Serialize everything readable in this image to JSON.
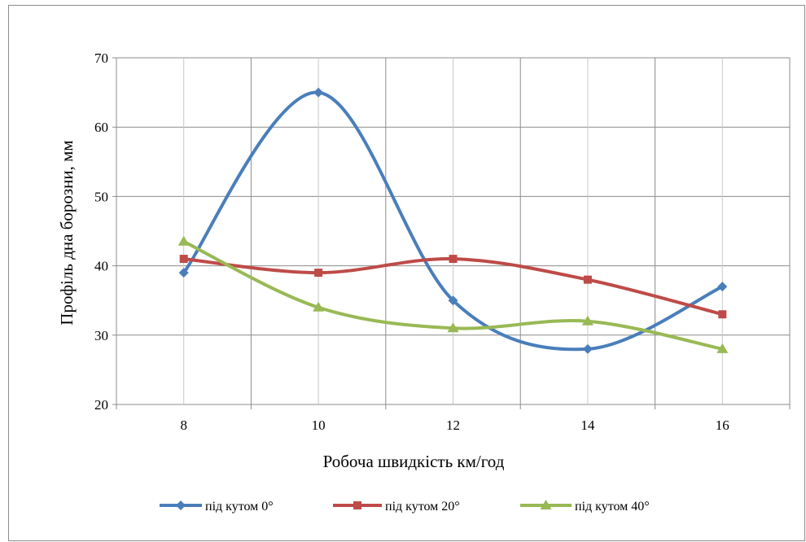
{
  "chart_data": {
    "type": "line",
    "title": "",
    "xlabel": "Робоча швидкість км/год",
    "ylabel": "Профіль дна борозни, мм",
    "x": [
      8,
      10,
      12,
      14,
      16
    ],
    "x_tick_labels": [
      "8",
      "10",
      "12",
      "14",
      "16"
    ],
    "ylim": [
      20,
      70
    ],
    "y_ticks": [
      20,
      30,
      40,
      50,
      60,
      70
    ],
    "y_tick_labels": [
      "20",
      "30",
      "40",
      "50",
      "60",
      "70"
    ],
    "grid": true,
    "smooth": true,
    "legend_position": "bottom",
    "series": [
      {
        "name": "під кутом 0°",
        "values": [
          39,
          65,
          35,
          28,
          37
        ],
        "color": "#4a7ebb",
        "marker": "diamond"
      },
      {
        "name": "під кутом 20°",
        "values": [
          41,
          39,
          41,
          38,
          33
        ],
        "color": "#be4b48",
        "marker": "square"
      },
      {
        "name": "під кутом 40°",
        "values": [
          43.5,
          34,
          31,
          32,
          28
        ],
        "color": "#98b954",
        "marker": "triangle"
      }
    ]
  }
}
